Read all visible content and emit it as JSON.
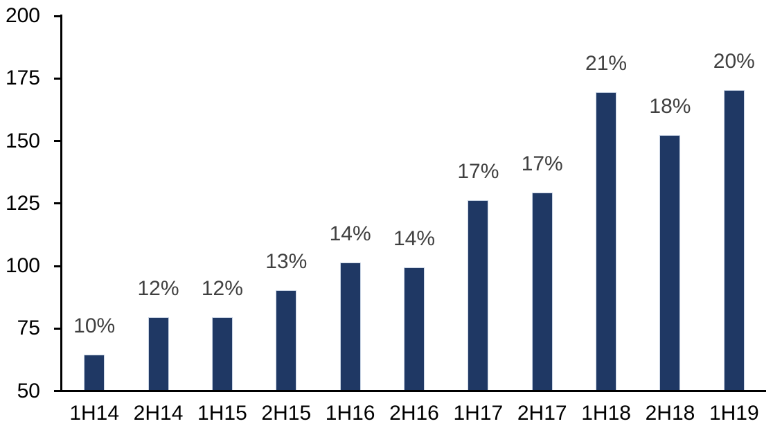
{
  "chart_data": {
    "type": "bar",
    "title": "",
    "xlabel": "",
    "ylabel": "",
    "categories": [
      "1H14",
      "2H14",
      "1H15",
      "2H15",
      "1H16",
      "2H16",
      "1H17",
      "2H17",
      "1H18",
      "2H18",
      "1H19"
    ],
    "values": [
      64,
      79,
      79,
      90,
      101,
      99,
      126,
      129,
      169,
      152,
      170
    ],
    "data_labels": [
      "10%",
      "12%",
      "12%",
      "13%",
      "14%",
      "14%",
      "17%",
      "17%",
      "21%",
      "18%",
      "20%"
    ],
    "ylim": [
      50,
      200
    ],
    "yticks": [
      50,
      75,
      100,
      125,
      150,
      175,
      200
    ],
    "grid": false,
    "legend": false,
    "bar_color": "#1F3864",
    "bar_border_color": "#C9D4E4",
    "data_label_color": "#404040",
    "axis_color": "#000000",
    "background_color": "#FFFFFF"
  }
}
